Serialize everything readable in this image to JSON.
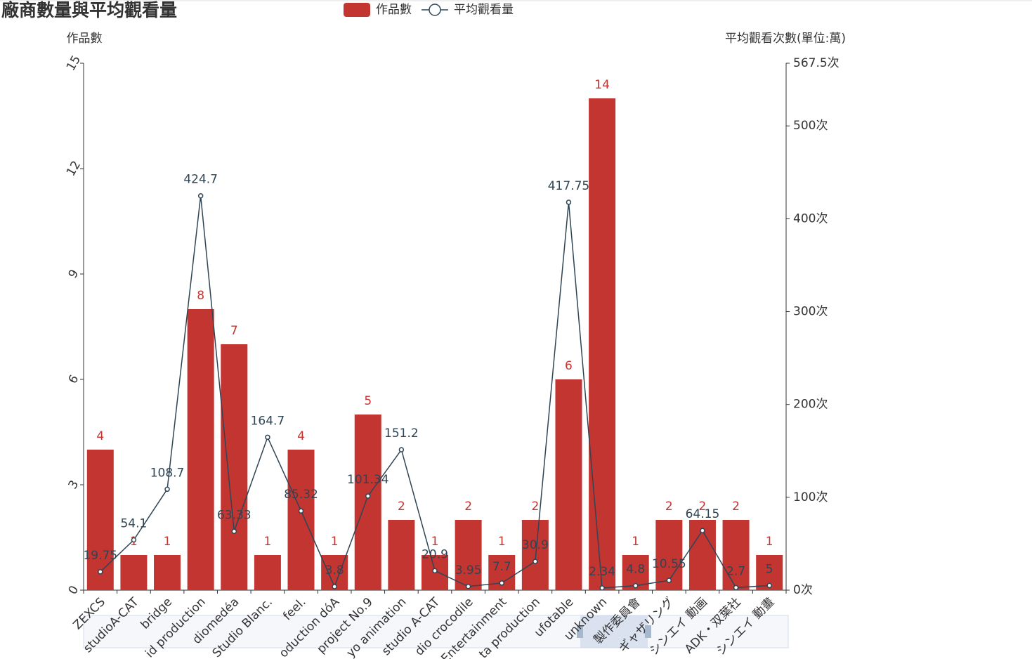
{
  "chart_data": {
    "type": "bar-line",
    "title": "廠商數量與平均觀看量",
    "y_axis_label": "作品數",
    "y2_axis_label": "平均觀看次數(單位:萬)",
    "categories": [
      "ZEXCS",
      "studioA-CAT",
      "bridge",
      "id production",
      "diomedéa",
      "Studio Blanc.",
      "feel.",
      "oduction dóA",
      "project No.9",
      "yo animation",
      "studio A-CAT",
      "dio crocodile",
      "Entertainment",
      "ta production",
      "ufotable",
      "unknown",
      "製作委員會",
      "ギャザリング",
      "シンエイ 動画",
      "ADK・双葉社",
      "シンエイ 動畫"
    ],
    "series": [
      {
        "name": "作品數",
        "type": "bar",
        "color": "#c23531",
        "values": [
          4,
          1,
          1,
          8,
          7,
          1,
          4,
          1,
          5,
          2,
          1,
          2,
          1,
          2,
          6,
          14,
          1,
          2,
          2,
          2,
          1
        ]
      },
      {
        "name": "平均觀看量",
        "type": "line",
        "axis": "y2",
        "color": "#2f4554",
        "values": [
          19.75,
          54.1,
          108.7,
          424.7,
          63.33,
          164.7,
          85.32,
          3.8,
          101.34,
          151.2,
          20.9,
          3.95,
          7.7,
          30.9,
          417.75,
          2.34,
          4.8,
          10.55,
          64.15,
          2.7,
          5
        ]
      }
    ],
    "ylim": [
      0,
      15
    ],
    "yticks": [
      0,
      3,
      6,
      9,
      12,
      15
    ],
    "y2lim": [
      0,
      567.5
    ],
    "y2ticks": [
      {
        "value": 0,
        "label": "0次"
      },
      {
        "value": 100,
        "label": "100次"
      },
      {
        "value": 200,
        "label": "200次"
      },
      {
        "value": 300,
        "label": "300次"
      },
      {
        "value": 400,
        "label": "400次"
      },
      {
        "value": 500,
        "label": "500次"
      },
      {
        "value": 567.5,
        "label": "567.5次"
      }
    ]
  }
}
